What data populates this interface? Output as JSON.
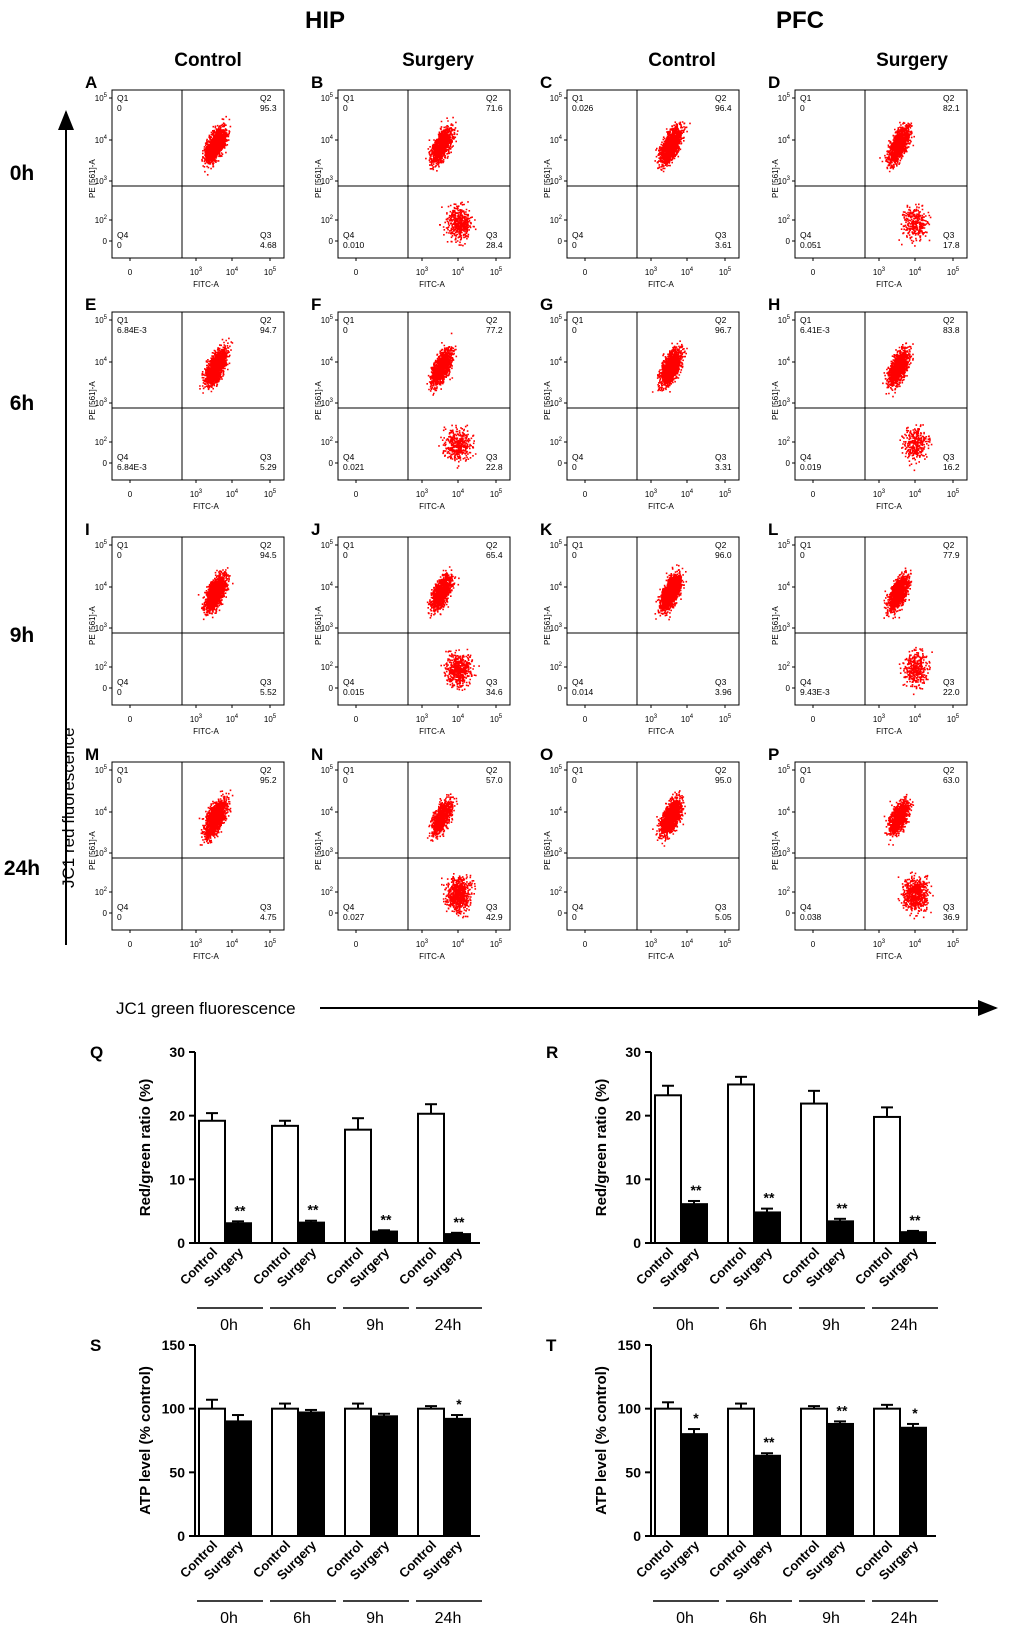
{
  "headers": {
    "hip": "HIP",
    "pfc": "PFC"
  },
  "columns": [
    "Control",
    "Surgery",
    "Control",
    "Surgery"
  ],
  "rows": [
    "0h",
    "6h",
    "9h",
    "24h"
  ],
  "flow_axis": {
    "x_label": "FITC-A",
    "y_label": "PE [561]-A",
    "y_ticks": [
      "10^5",
      "10^4",
      "10^3",
      "10^2",
      "0"
    ],
    "x_ticks": [
      "0",
      "10^3",
      "10^4",
      "10^5"
    ],
    "quadrant_names": [
      "Q1",
      "Q2",
      "Q3",
      "Q4"
    ]
  },
  "big_axes": {
    "y": "JC1 red fluorescence",
    "x": "JC1 green fluorescence"
  },
  "flow_panels": [
    {
      "letter": "A",
      "q1": "0",
      "q2": "95.3",
      "q3": "4.68",
      "q4": "0",
      "low_pop": 0.0
    },
    {
      "letter": "B",
      "q1": "0",
      "q2": "71.6",
      "q3": "28.4",
      "q4": "0.010",
      "low_pop": 0.3
    },
    {
      "letter": "C",
      "q1": "0.026",
      "q2": "96.4",
      "q3": "3.61",
      "q4": "0",
      "low_pop": 0.0
    },
    {
      "letter": "D",
      "q1": "0",
      "q2": "82.1",
      "q3": "17.8",
      "q4": "0.051",
      "low_pop": 0.2
    },
    {
      "letter": "E",
      "q1": "6.84E-3",
      "q2": "94.7",
      "q3": "5.29",
      "q4": "6.84E-3",
      "low_pop": 0.0
    },
    {
      "letter": "F",
      "q1": "0",
      "q2": "77.2",
      "q3": "22.8",
      "q4": "0.021",
      "low_pop": 0.25
    },
    {
      "letter": "G",
      "q1": "0",
      "q2": "96.7",
      "q3": "3.31",
      "q4": "0",
      "low_pop": 0.0
    },
    {
      "letter": "H",
      "q1": "6.41E-3",
      "q2": "83.8",
      "q3": "16.2",
      "q4": "0.019",
      "low_pop": 0.2
    },
    {
      "letter": "I",
      "q1": "0",
      "q2": "94.5",
      "q3": "5.52",
      "q4": "0",
      "low_pop": 0.0
    },
    {
      "letter": "J",
      "q1": "0",
      "q2": "65.4",
      "q3": "34.6",
      "q4": "0.015",
      "low_pop": 0.35
    },
    {
      "letter": "K",
      "q1": "0",
      "q2": "96.0",
      "q3": "3.96",
      "q4": "0.014",
      "low_pop": 0.0
    },
    {
      "letter": "L",
      "q1": "0",
      "q2": "77.9",
      "q3": "22.0",
      "q4": "9.43E-3",
      "low_pop": 0.25
    },
    {
      "letter": "M",
      "q1": "0",
      "q2": "95.2",
      "q3": "4.75",
      "q4": "0",
      "low_pop": 0.0
    },
    {
      "letter": "N",
      "q1": "0",
      "q2": "57.0",
      "q3": "42.9",
      "q4": "0.027",
      "low_pop": 0.45
    },
    {
      "letter": "O",
      "q1": "0",
      "q2": "95.0",
      "q3": "5.05",
      "q4": "0",
      "low_pop": 0.0
    },
    {
      "letter": "P",
      "q1": "0",
      "q2": "63.0",
      "q3": "36.9",
      "q4": "0.038",
      "low_pop": 0.4
    }
  ],
  "chart_data": [
    {
      "panel": "Q",
      "type": "bar",
      "ylabel": "Red/green ratio (%)",
      "ylim": [
        0,
        30
      ],
      "ticks": [
        0,
        10,
        20,
        30
      ],
      "groups": [
        "0h",
        "6h",
        "9h",
        "24h"
      ],
      "bar_labels": [
        "Control",
        "Surgery"
      ],
      "group_underline": true,
      "series": [
        {
          "name": "Control",
          "color": "#ffffff",
          "values": [
            19.2,
            18.4,
            17.8,
            20.3
          ],
          "errors": [
            1.2,
            0.8,
            1.8,
            1.5
          ],
          "sig": [
            "",
            "",
            "",
            ""
          ]
        },
        {
          "name": "Surgery",
          "color": "#000000",
          "values": [
            3.1,
            3.2,
            1.8,
            1.4
          ],
          "errors": [
            0.3,
            0.3,
            0.2,
            0.2
          ],
          "sig": [
            "**",
            "**",
            "**",
            "**"
          ]
        }
      ]
    },
    {
      "panel": "R",
      "type": "bar",
      "ylabel": "Red/green ratio (%)",
      "ylim": [
        0,
        30
      ],
      "ticks": [
        0,
        10,
        20,
        30
      ],
      "groups": [
        "0h",
        "6h",
        "9h",
        "24h"
      ],
      "bar_labels": [
        "Control",
        "Surgery"
      ],
      "group_underline": true,
      "series": [
        {
          "name": "Control",
          "color": "#ffffff",
          "values": [
            23.2,
            24.9,
            21.9,
            19.8
          ],
          "errors": [
            1.5,
            1.2,
            2.0,
            1.5
          ],
          "sig": [
            "",
            "",
            "",
            ""
          ]
        },
        {
          "name": "Surgery",
          "color": "#000000",
          "values": [
            6.1,
            4.8,
            3.4,
            1.7
          ],
          "errors": [
            0.5,
            0.6,
            0.4,
            0.2
          ],
          "sig": [
            "**",
            "**",
            "**",
            "**"
          ]
        }
      ]
    },
    {
      "panel": "S",
      "type": "bar",
      "ylabel": "ATP level (% control)",
      "ylim": [
        0,
        150
      ],
      "ticks": [
        0,
        50,
        100,
        150
      ],
      "groups": [
        "0h",
        "6h",
        "9h",
        "24h"
      ],
      "bar_labels": [
        "Control",
        "Surgery"
      ],
      "group_underline": true,
      "series": [
        {
          "name": "Control",
          "color": "#ffffff",
          "values": [
            100,
            100,
            100,
            100
          ],
          "errors": [
            7,
            4,
            4,
            2
          ],
          "sig": [
            "",
            "",
            "",
            ""
          ]
        },
        {
          "name": "Surgery",
          "color": "#000000",
          "values": [
            90,
            97,
            94,
            92
          ],
          "errors": [
            5,
            2,
            2,
            3
          ],
          "sig": [
            "",
            "",
            "",
            "*"
          ]
        }
      ]
    },
    {
      "panel": "T",
      "type": "bar",
      "ylabel": "ATP level (% control)",
      "ylim": [
        0,
        150
      ],
      "ticks": [
        0,
        50,
        100,
        150
      ],
      "groups": [
        "0h",
        "6h",
        "9h",
        "24h"
      ],
      "bar_labels": [
        "Control",
        "Surgery"
      ],
      "group_underline": true,
      "series": [
        {
          "name": "Control",
          "color": "#ffffff",
          "values": [
            100,
            100,
            100,
            100
          ],
          "errors": [
            5,
            4,
            2,
            3
          ],
          "sig": [
            "",
            "",
            "",
            ""
          ]
        },
        {
          "name": "Surgery",
          "color": "#000000",
          "values": [
            80,
            63,
            88,
            85
          ],
          "errors": [
            4,
            2,
            2,
            3
          ],
          "sig": [
            "*",
            "**",
            "**",
            "*"
          ]
        }
      ]
    }
  ],
  "colors": {
    "dots": "#ff0000",
    "axis": "#000000"
  }
}
